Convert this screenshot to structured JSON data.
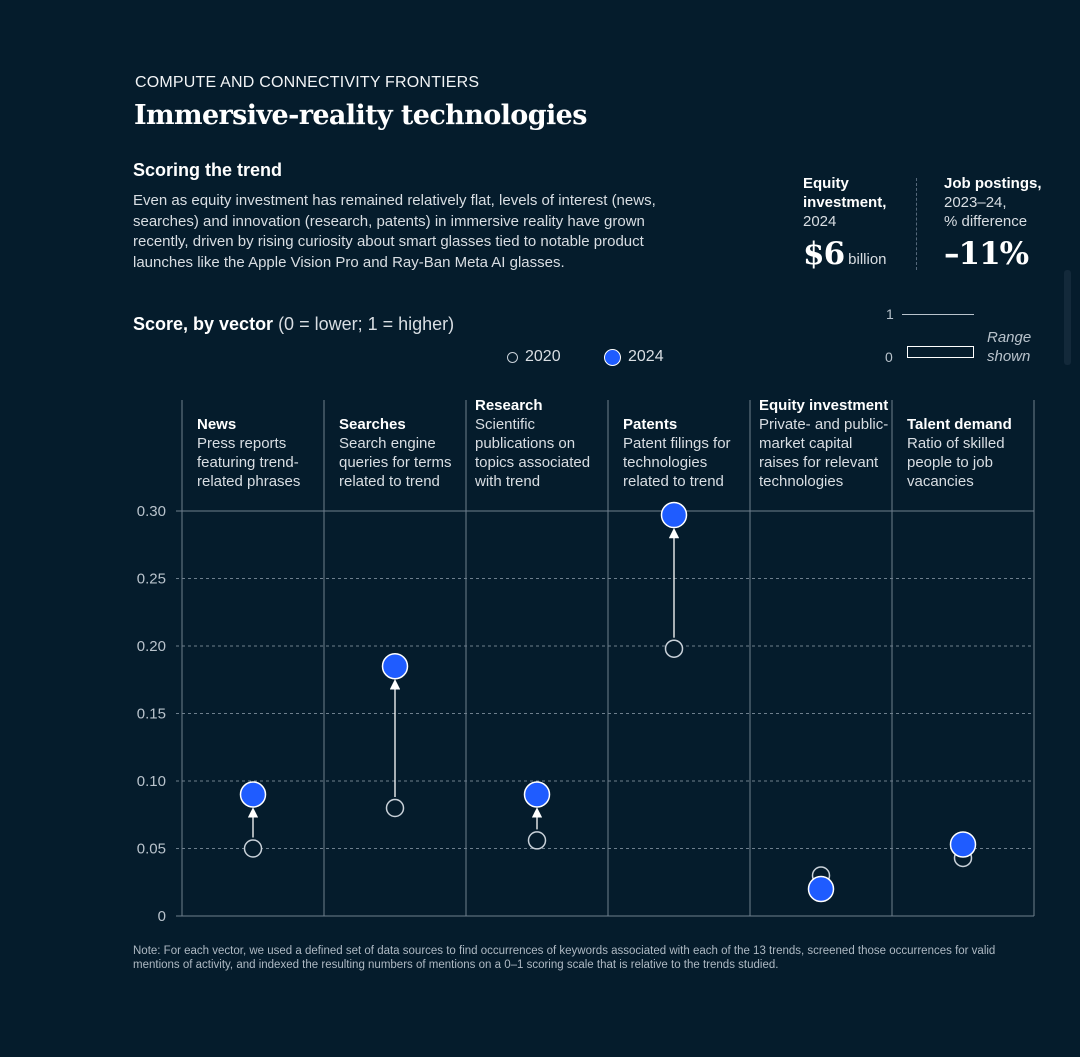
{
  "header": {
    "eyebrow": "COMPUTE AND CONNECTIVITY FRONTIERS",
    "title": "Immersive-reality technologies",
    "subhead": "Scoring the trend",
    "description": "Even as equity investment has remained relatively flat, levels of interest (news, searches) and innovation (research, patents) in immersive reality have grown recently, driven by rising curiosity about smart glasses tied to notable product launches like the Apple Vision Pro and Ray-Ban Meta AI glasses."
  },
  "stats": {
    "equity": {
      "label_bold_1": "Equity",
      "label_bold_2": "investment,",
      "label_year": "2024",
      "value": "$6",
      "unit": "billion"
    },
    "jobs": {
      "label_bold": "Job postings,",
      "label_line2": "2023–24,",
      "label_line3": "% difference",
      "value": "–11%"
    }
  },
  "score_section": {
    "label_bold": "Score, by vector",
    "label_normal": " (0 = lower; 1 = higher)",
    "legend_2020": "2020",
    "legend_2024": "2024",
    "range_top": "1",
    "range_bottom": "0",
    "range_caption_1": "Range",
    "range_caption_2": "shown"
  },
  "colors": {
    "background": "#051c2c",
    "accent_2024": "#1f5cff",
    "marker_2020": "#c9d1d9",
    "grid": "#6e7f8d"
  },
  "chart_data": {
    "type": "scatter",
    "title": "Score, by vector (0 = lower; 1 = higher)",
    "ylim": [
      0,
      0.3
    ],
    "y_ticks": [
      "0",
      "0.05",
      "0.10",
      "0.15",
      "0.20",
      "0.25",
      "0.30"
    ],
    "y_tick_values": [
      0,
      0.05,
      0.1,
      0.15,
      0.2,
      0.25,
      0.3
    ],
    "series_names": [
      "2020",
      "2024"
    ],
    "categories": [
      {
        "name": "News",
        "desc": [
          "Press reports",
          "featuring trend-",
          "related phrases"
        ],
        "v2020": 0.05,
        "v2024": 0.09,
        "arrow": true
      },
      {
        "name": "Searches",
        "desc": [
          "Search engine",
          "queries for terms",
          "related to trend"
        ],
        "v2020": 0.08,
        "v2024": 0.185,
        "arrow": true
      },
      {
        "name": "Research",
        "desc": [
          "Scientific",
          "publications on",
          "topics associated",
          "with trend"
        ],
        "v2020": 0.056,
        "v2024": 0.09,
        "arrow": true
      },
      {
        "name": "Patents",
        "desc": [
          "Patent filings for",
          "technologies",
          "related to trend"
        ],
        "v2020": 0.198,
        "v2024": 0.297,
        "arrow": true
      },
      {
        "name": "Equity investment",
        "desc": [
          "Private- and public-",
          "market capital",
          "raises for relevant",
          "technologies"
        ],
        "v2020": 0.03,
        "v2024": 0.02,
        "arrow": false
      },
      {
        "name": "Talent demand",
        "desc": [
          "Ratio of skilled",
          "people to job",
          "vacancies"
        ],
        "v2020": 0.043,
        "v2024": 0.053,
        "arrow": false
      }
    ]
  },
  "note": "Note: For each vector, we used a defined set of data sources to find occurrences of keywords associated with each of the 13 trends, screened those occurrences for valid mentions of activity, and indexed the resulting numbers of mentions on a 0–1 scoring scale that is relative to the trends studied."
}
